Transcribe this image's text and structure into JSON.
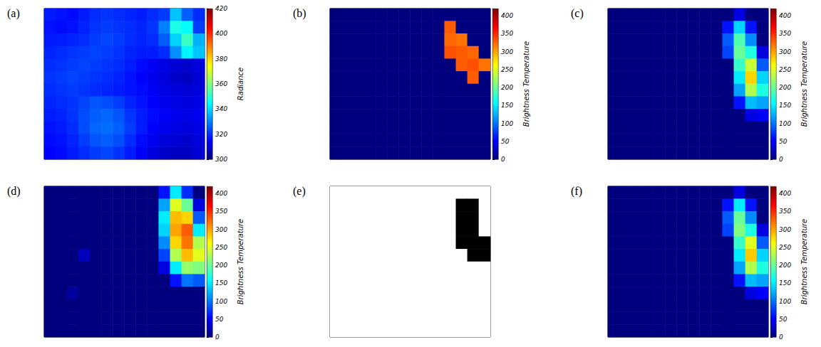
{
  "chart_data": [
    {
      "type": "heatmap",
      "panel": "(a)",
      "colorbar": {
        "label": "Radiance",
        "range": [
          300,
          420
        ],
        "ticks": [
          300,
          320,
          340,
          360,
          380,
          400,
          420
        ]
      },
      "cells": [
        [
          318,
          317,
          316,
          318,
          320,
          321,
          320,
          319,
          318,
          320,
          322,
          338,
          326,
          320
        ],
        [
          317,
          316,
          317,
          319,
          321,
          322,
          321,
          320,
          319,
          321,
          330,
          348,
          345,
          322
        ],
        [
          318,
          318,
          319,
          320,
          322,
          323,
          322,
          320,
          319,
          320,
          326,
          340,
          352,
          336
        ],
        [
          319,
          320,
          321,
          322,
          323,
          322,
          321,
          319,
          318,
          318,
          320,
          332,
          344,
          338
        ],
        [
          320,
          321,
          322,
          323,
          322,
          321,
          320,
          318,
          316,
          314,
          312,
          310,
          309,
          311
        ],
        [
          321,
          322,
          323,
          322,
          321,
          320,
          319,
          317,
          315,
          313,
          311,
          309,
          308,
          310
        ],
        [
          320,
          321,
          322,
          321,
          320,
          319,
          318,
          317,
          316,
          314,
          312,
          311,
          310,
          311
        ],
        [
          319,
          320,
          321,
          323,
          325,
          324,
          322,
          319,
          317,
          315,
          313,
          312,
          311,
          312
        ],
        [
          318,
          319,
          321,
          324,
          326,
          327,
          325,
          321,
          318,
          316,
          314,
          313,
          312,
          313
        ],
        [
          317,
          318,
          320,
          324,
          327,
          328,
          326,
          322,
          318,
          315,
          313,
          312,
          311,
          312
        ],
        [
          316,
          317,
          319,
          322,
          325,
          326,
          324,
          320,
          316,
          313,
          311,
          310,
          309,
          311
        ],
        [
          315,
          316,
          318,
          320,
          322,
          323,
          321,
          318,
          314,
          311,
          309,
          308,
          308,
          310
        ]
      ]
    },
    {
      "type": "heatmap",
      "panel": "(b)",
      "colorbar": {
        "label": "Brightness Temperature",
        "range": [
          0,
          420
        ],
        "ticks": [
          0,
          50,
          100,
          150,
          200,
          250,
          300,
          350,
          400
        ]
      },
      "cells": [
        [
          0,
          0,
          0,
          0,
          0,
          0,
          0,
          0,
          0,
          0,
          0,
          0,
          0,
          0
        ],
        [
          0,
          0,
          0,
          0,
          0,
          0,
          0,
          0,
          0,
          0,
          330,
          0,
          0,
          0
        ],
        [
          0,
          0,
          0,
          0,
          0,
          0,
          0,
          0,
          0,
          0,
          325,
          320,
          0,
          0
        ],
        [
          0,
          0,
          0,
          0,
          0,
          0,
          0,
          0,
          0,
          0,
          335,
          330,
          325,
          0
        ],
        [
          0,
          0,
          0,
          0,
          0,
          0,
          0,
          0,
          0,
          0,
          0,
          330,
          335,
          320
        ],
        [
          0,
          0,
          0,
          0,
          0,
          0,
          0,
          0,
          0,
          0,
          0,
          0,
          330,
          0
        ],
        [
          0,
          0,
          0,
          0,
          0,
          0,
          0,
          0,
          0,
          0,
          0,
          0,
          0,
          0
        ],
        [
          0,
          0,
          0,
          0,
          0,
          0,
          0,
          0,
          0,
          0,
          0,
          0,
          0,
          0
        ],
        [
          0,
          0,
          0,
          0,
          0,
          0,
          0,
          0,
          0,
          0,
          0,
          0,
          0,
          0
        ],
        [
          0,
          0,
          0,
          0,
          0,
          0,
          0,
          0,
          0,
          0,
          0,
          0,
          0,
          0
        ],
        [
          0,
          0,
          0,
          0,
          0,
          0,
          0,
          0,
          0,
          0,
          0,
          0,
          0,
          0
        ],
        [
          0,
          0,
          0,
          0,
          0,
          0,
          0,
          0,
          0,
          0,
          0,
          0,
          0,
          0
        ]
      ]
    },
    {
      "type": "heatmap",
      "panel": "(c)",
      "colorbar": {
        "label": "Brightness Temperature",
        "range": [
          0,
          420
        ],
        "ticks": [
          0,
          50,
          100,
          150,
          200,
          250,
          300,
          350,
          400
        ]
      },
      "cells": [
        [
          0,
          0,
          0,
          0,
          0,
          0,
          0,
          0,
          0,
          0,
          0,
          40,
          0,
          0
        ],
        [
          0,
          0,
          0,
          0,
          0,
          0,
          0,
          0,
          0,
          0,
          60,
          140,
          60,
          0
        ],
        [
          0,
          0,
          0,
          0,
          0,
          0,
          0,
          0,
          0,
          0,
          90,
          190,
          110,
          0
        ],
        [
          0,
          0,
          0,
          0,
          0,
          0,
          0,
          0,
          0,
          0,
          80,
          200,
          170,
          40
        ],
        [
          0,
          0,
          0,
          0,
          0,
          0,
          0,
          0,
          0,
          0,
          0,
          180,
          240,
          90
        ],
        [
          0,
          0,
          0,
          0,
          0,
          0,
          0,
          0,
          0,
          0,
          0,
          150,
          280,
          140
        ],
        [
          0,
          0,
          0,
          0,
          0,
          0,
          0,
          0,
          0,
          0,
          0,
          120,
          230,
          170
        ],
        [
          0,
          0,
          0,
          0,
          0,
          0,
          0,
          0,
          0,
          0,
          0,
          60,
          130,
          120
        ],
        [
          0,
          0,
          0,
          0,
          0,
          0,
          0,
          0,
          0,
          0,
          0,
          0,
          40,
          50
        ],
        [
          0,
          0,
          0,
          0,
          0,
          0,
          0,
          0,
          0,
          0,
          0,
          0,
          0,
          0
        ],
        [
          0,
          0,
          0,
          0,
          0,
          0,
          0,
          0,
          0,
          0,
          0,
          0,
          0,
          0
        ],
        [
          0,
          0,
          0,
          0,
          0,
          0,
          0,
          0,
          0,
          0,
          0,
          0,
          0,
          0
        ]
      ]
    },
    {
      "type": "heatmap",
      "panel": "(d)",
      "colorbar": {
        "label": "Brightness Temperature",
        "range": [
          0,
          420
        ],
        "ticks": [
          0,
          50,
          100,
          150,
          200,
          250,
          300,
          350,
          400
        ]
      },
      "cells": [
        [
          0,
          0,
          0,
          0,
          0,
          0,
          0,
          0,
          0,
          0,
          60,
          150,
          70,
          0
        ],
        [
          0,
          0,
          0,
          0,
          0,
          0,
          0,
          0,
          0,
          0,
          120,
          250,
          200,
          40
        ],
        [
          0,
          0,
          0,
          0,
          0,
          0,
          0,
          0,
          0,
          0,
          150,
          290,
          280,
          90
        ],
        [
          0,
          0,
          0,
          0,
          0,
          0,
          0,
          0,
          0,
          0,
          140,
          300,
          330,
          150
        ],
        [
          0,
          0,
          0,
          0,
          0,
          0,
          0,
          0,
          0,
          0,
          110,
          280,
          320,
          230
        ],
        [
          0,
          0,
          0,
          25,
          0,
          0,
          0,
          0,
          0,
          0,
          80,
          230,
          290,
          250
        ],
        [
          0,
          0,
          0,
          0,
          0,
          0,
          0,
          0,
          0,
          0,
          40,
          150,
          220,
          210
        ],
        [
          0,
          0,
          0,
          0,
          0,
          0,
          0,
          0,
          0,
          0,
          0,
          60,
          100,
          90
        ],
        [
          0,
          0,
          12,
          0,
          0,
          0,
          0,
          0,
          0,
          0,
          0,
          0,
          0,
          0
        ],
        [
          0,
          0,
          0,
          0,
          0,
          0,
          0,
          0,
          0,
          0,
          0,
          0,
          0,
          0
        ],
        [
          0,
          0,
          0,
          0,
          0,
          0,
          0,
          0,
          0,
          0,
          0,
          0,
          0,
          0
        ],
        [
          0,
          0,
          0,
          0,
          0,
          0,
          0,
          0,
          0,
          0,
          0,
          0,
          0,
          0
        ]
      ]
    },
    {
      "type": "heatmap",
      "panel": "(e)",
      "colors": [
        "#ffffff",
        "#000000"
      ],
      "cells": [
        [
          0,
          0,
          0,
          0,
          0,
          0,
          0,
          0,
          0,
          0,
          0,
          0,
          0,
          0
        ],
        [
          0,
          0,
          0,
          0,
          0,
          0,
          0,
          0,
          0,
          0,
          0,
          1,
          1,
          0
        ],
        [
          0,
          0,
          0,
          0,
          0,
          0,
          0,
          0,
          0,
          0,
          0,
          1,
          1,
          0
        ],
        [
          0,
          0,
          0,
          0,
          0,
          0,
          0,
          0,
          0,
          0,
          0,
          1,
          1,
          0
        ],
        [
          0,
          0,
          0,
          0,
          0,
          0,
          0,
          0,
          0,
          0,
          0,
          1,
          1,
          1
        ],
        [
          0,
          0,
          0,
          0,
          0,
          0,
          0,
          0,
          0,
          0,
          0,
          0,
          1,
          1
        ],
        [
          0,
          0,
          0,
          0,
          0,
          0,
          0,
          0,
          0,
          0,
          0,
          0,
          0,
          0
        ],
        [
          0,
          0,
          0,
          0,
          0,
          0,
          0,
          0,
          0,
          0,
          0,
          0,
          0,
          0
        ],
        [
          0,
          0,
          0,
          0,
          0,
          0,
          0,
          0,
          0,
          0,
          0,
          0,
          0,
          0
        ],
        [
          0,
          0,
          0,
          0,
          0,
          0,
          0,
          0,
          0,
          0,
          0,
          0,
          0,
          0
        ],
        [
          0,
          0,
          0,
          0,
          0,
          0,
          0,
          0,
          0,
          0,
          0,
          0,
          0,
          0
        ],
        [
          0,
          0,
          0,
          0,
          0,
          0,
          0,
          0,
          0,
          0,
          0,
          0,
          0,
          0
        ]
      ]
    },
    {
      "type": "heatmap",
      "panel": "(f)",
      "colorbar": {
        "label": "Brightness Temperature",
        "range": [
          0,
          420
        ],
        "ticks": [
          0,
          50,
          100,
          150,
          200,
          250,
          300,
          350,
          400
        ]
      },
      "cells": [
        [
          0,
          0,
          0,
          0,
          0,
          0,
          0,
          0,
          0,
          0,
          0,
          40,
          0,
          0
        ],
        [
          0,
          0,
          0,
          0,
          0,
          0,
          0,
          0,
          0,
          0,
          60,
          150,
          60,
          0
        ],
        [
          0,
          0,
          0,
          0,
          0,
          0,
          0,
          0,
          0,
          0,
          90,
          200,
          110,
          0
        ],
        [
          0,
          0,
          0,
          0,
          0,
          0,
          0,
          0,
          0,
          0,
          80,
          210,
          170,
          40
        ],
        [
          0,
          0,
          0,
          0,
          0,
          0,
          0,
          0,
          0,
          0,
          0,
          180,
          250,
          90
        ],
        [
          0,
          0,
          0,
          0,
          0,
          0,
          0,
          0,
          0,
          0,
          0,
          150,
          285,
          140
        ],
        [
          0,
          0,
          0,
          0,
          0,
          0,
          0,
          0,
          0,
          0,
          0,
          120,
          230,
          170
        ],
        [
          0,
          0,
          0,
          0,
          0,
          0,
          0,
          0,
          0,
          0,
          0,
          60,
          130,
          120
        ],
        [
          0,
          0,
          0,
          0,
          0,
          0,
          0,
          0,
          0,
          0,
          0,
          0,
          40,
          50
        ],
        [
          0,
          0,
          0,
          0,
          0,
          0,
          0,
          0,
          0,
          0,
          0,
          0,
          0,
          0
        ],
        [
          0,
          0,
          0,
          0,
          0,
          0,
          0,
          0,
          0,
          0,
          0,
          0,
          0,
          0
        ],
        [
          0,
          0,
          0,
          0,
          0,
          0,
          0,
          0,
          0,
          0,
          0,
          0,
          0,
          0
        ]
      ]
    }
  ]
}
